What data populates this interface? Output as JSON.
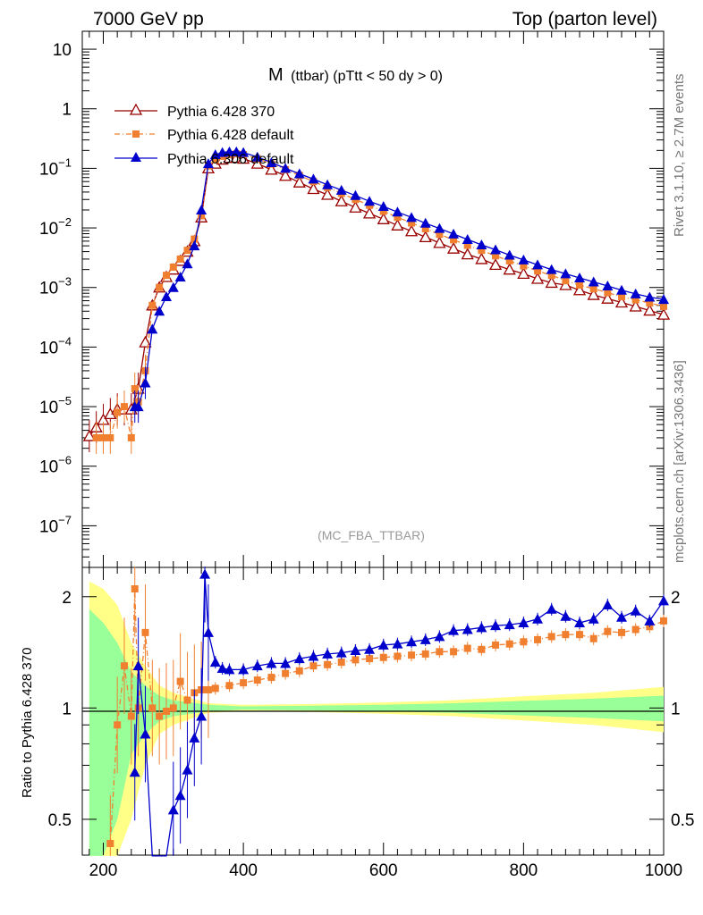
{
  "header": {
    "left": "7000 GeV pp",
    "right": "Top (parton level)"
  },
  "plot_title": {
    "main": "M",
    "sub": "(ttbar) (pTtt < 50 dy > 0)"
  },
  "watermark": "(MC_FBA_TTBAR)",
  "side_labels": {
    "rivet": "Rivet 3.1.10, ≥ 2.7M events",
    "mcplots": "mcplots.cern.ch [arXiv:1306.3436]"
  },
  "ratio_ylabel": "Ratio to Pythia 6.428 370",
  "legend": [
    {
      "label": "Pythia 6.428 370",
      "color": "#990000",
      "marker": "open-triangle",
      "line": "solid"
    },
    {
      "label": "Pythia 6.428 default",
      "color": "#f08030",
      "marker": "square",
      "line": "dashdot"
    },
    {
      "label": "Pythia 6.306 default",
      "color": "#0000cc",
      "marker": "filled-triangle",
      "line": "solid"
    }
  ],
  "colors": {
    "ref": "#990000",
    "default428": "#f08030",
    "default306": "#0000cc",
    "band_inner": "#99ff99",
    "band_outer": "#ffff88"
  },
  "chart_data": [
    {
      "type": "line",
      "panel": "main",
      "xlim": [
        170,
        1000
      ],
      "yscale": "log",
      "ylim": [
        2e-08,
        20
      ],
      "xticks": [
        200,
        400,
        600,
        800,
        1000
      ],
      "yticks": [
        {
          "value": 1e-07,
          "base": "10",
          "exp": "−7"
        },
        {
          "value": 1e-06,
          "base": "10",
          "exp": "−6"
        },
        {
          "value": 1e-05,
          "base": "10",
          "exp": "−5"
        },
        {
          "value": 0.0001,
          "base": "10",
          "exp": "−4"
        },
        {
          "value": 0.001,
          "base": "10",
          "exp": "−3"
        },
        {
          "value": 0.01,
          "base": "10",
          "exp": "−2"
        },
        {
          "value": 0.1,
          "base": "10",
          "exp": "−1"
        },
        {
          "value": 1,
          "base": "1",
          "exp": ""
        },
        {
          "value": 10,
          "base": "10",
          "exp": ""
        }
      ],
      "series": [
        {
          "name": "Pythia 6.428 370",
          "x": [
            180,
            190,
            200,
            210,
            220,
            230,
            240,
            250,
            260,
            270,
            280,
            290,
            300,
            310,
            320,
            330,
            340,
            350,
            360,
            370,
            380,
            390,
            400,
            420,
            440,
            460,
            480,
            500,
            520,
            540,
            560,
            580,
            600,
            620,
            640,
            660,
            680,
            700,
            720,
            740,
            760,
            780,
            800,
            820,
            840,
            860,
            880,
            900,
            920,
            940,
            960,
            980,
            1000
          ],
          "y": [
            3.2e-06,
            4.5e-06,
            6e-06,
            7.5e-06,
            9e-06,
            9e-06,
            9e-06,
            2e-05,
            0.00012,
            0.0005,
            0.001,
            0.0015,
            0.002,
            0.0028,
            0.004,
            0.006,
            0.015,
            0.1,
            0.12,
            0.14,
            0.15,
            0.15,
            0.145,
            0.12,
            0.095,
            0.075,
            0.058,
            0.045,
            0.036,
            0.028,
            0.022,
            0.0175,
            0.014,
            0.011,
            0.0088,
            0.007,
            0.0056,
            0.0045,
            0.0036,
            0.003,
            0.0024,
            0.002,
            0.0017,
            0.0014,
            0.0012,
            0.0011,
            0.0009,
            0.00075,
            0.00065,
            0.00056,
            0.00048,
            0.00041,
            0.00035
          ]
        },
        {
          "name": "Pythia 6.428 default",
          "x": [
            190,
            200,
            210,
            220,
            230,
            240,
            245,
            250,
            260,
            270,
            280,
            290,
            300,
            310,
            320,
            330,
            340,
            350,
            360,
            370,
            380,
            390,
            400,
            420,
            440,
            460,
            480,
            500,
            520,
            540,
            560,
            580,
            600,
            620,
            640,
            660,
            680,
            700,
            720,
            740,
            760,
            780,
            800,
            820,
            840,
            860,
            880,
            900,
            920,
            940,
            960,
            980,
            1000
          ],
          "y": [
            3e-06,
            3e-06,
            3e-06,
            8e-06,
            1e-05,
            3e-06,
            2e-05,
            1.2e-05,
            4e-05,
            0.0005,
            0.001,
            0.0016,
            0.0022,
            0.003,
            0.0042,
            0.0065,
            0.016,
            0.11,
            0.14,
            0.16,
            0.17,
            0.175,
            0.17,
            0.145,
            0.118,
            0.095,
            0.076,
            0.06,
            0.048,
            0.038,
            0.03,
            0.024,
            0.019,
            0.0151,
            0.0121,
            0.0097,
            0.0078,
            0.0063,
            0.0051,
            0.0042,
            0.0034,
            0.0028,
            0.0023,
            0.0019,
            0.0016,
            0.0013,
            0.0011,
            0.00095,
            0.00082,
            0.0007,
            0.00062,
            0.00055,
            0.00048
          ]
        },
        {
          "name": "Pythia 6.306 default",
          "x": [
            245,
            250,
            260,
            270,
            280,
            290,
            300,
            310,
            320,
            330,
            340,
            350,
            360,
            370,
            380,
            390,
            400,
            420,
            440,
            460,
            480,
            500,
            520,
            540,
            560,
            580,
            600,
            620,
            640,
            660,
            680,
            700,
            720,
            740,
            760,
            780,
            800,
            820,
            840,
            860,
            880,
            900,
            920,
            940,
            960,
            980,
            1000
          ],
          "y": [
            1e-05,
            1e-05,
            2.5e-05,
            0.0002,
            0.0004,
            0.0007,
            0.001,
            0.0015,
            0.0025,
            0.005,
            0.02,
            0.12,
            0.17,
            0.185,
            0.19,
            0.19,
            0.185,
            0.155,
            0.125,
            0.1,
            0.081,
            0.066,
            0.053,
            0.043,
            0.035,
            0.028,
            0.023,
            0.0185,
            0.015,
            0.012,
            0.0098,
            0.0079,
            0.0064,
            0.0052,
            0.0043,
            0.0035,
            0.0029,
            0.0024,
            0.002,
            0.0017,
            0.00145,
            0.00124,
            0.00106,
            0.0009,
            0.00078,
            0.00069,
            0.00063
          ]
        }
      ]
    },
    {
      "type": "line",
      "panel": "ratio",
      "ylabel": "Ratio to Pythia 6.428 370",
      "xlim": [
        170,
        1000
      ],
      "yscale": "log",
      "ylim": [
        0.4,
        2.4
      ],
      "xticks": [
        200,
        400,
        600,
        800,
        1000
      ],
      "yticks": [
        0.5,
        1,
        2
      ],
      "reference_line": 1,
      "band": {
        "x": [
          180,
          200,
          220,
          240,
          260,
          280,
          300,
          350,
          400,
          500,
          600,
          700,
          800,
          900,
          1000
        ],
        "inner": [
          0.85,
          0.7,
          0.5,
          0.25,
          0.15,
          0.08,
          0.05,
          0.02,
          0.01,
          0.015,
          0.02,
          0.03,
          0.045,
          0.06,
          0.08
        ],
        "outer": [
          1.2,
          1.1,
          0.9,
          0.5,
          0.3,
          0.15,
          0.1,
          0.03,
          0.02,
          0.025,
          0.035,
          0.05,
          0.075,
          0.1,
          0.14
        ]
      },
      "series": [
        {
          "name": "Pythia 6.428 default",
          "x": [
            210,
            220,
            230,
            240,
            245,
            250,
            260,
            270,
            280,
            290,
            300,
            310,
            320,
            330,
            340,
            350,
            360,
            380,
            400,
            420,
            440,
            460,
            480,
            500,
            520,
            540,
            560,
            580,
            600,
            620,
            640,
            660,
            680,
            700,
            720,
            740,
            760,
            780,
            800,
            820,
            840,
            860,
            880,
            900,
            920,
            940,
            960,
            980,
            1000
          ],
          "y": [
            0.43,
            0.9,
            1.3,
            0.95,
            2.1,
            1.0,
            1.6,
            1.0,
            0.95,
            0.98,
            1.0,
            1.18,
            1.05,
            1.1,
            1.12,
            1.12,
            1.13,
            1.15,
            1.17,
            1.19,
            1.21,
            1.24,
            1.26,
            1.3,
            1.31,
            1.33,
            1.35,
            1.36,
            1.37,
            1.38,
            1.39,
            1.4,
            1.42,
            1.42,
            1.45,
            1.44,
            1.48,
            1.49,
            1.51,
            1.53,
            1.56,
            1.58,
            1.58,
            1.54,
            1.61,
            1.6,
            1.63,
            1.66,
            1.72
          ]
        },
        {
          "name": "Pythia 6.306 default",
          "x": [
            245,
            250,
            260,
            270,
            290,
            300,
            310,
            320,
            330,
            340,
            345,
            350,
            360,
            370,
            380,
            400,
            420,
            440,
            460,
            480,
            500,
            520,
            540,
            560,
            580,
            600,
            620,
            640,
            660,
            680,
            700,
            720,
            740,
            760,
            780,
            800,
            820,
            840,
            860,
            880,
            900,
            920,
            940,
            960,
            980,
            1000
          ],
          "y": [
            0.67,
            1.3,
            0.85,
            0.35,
            0.38,
            0.53,
            0.58,
            0.68,
            0.83,
            0.95,
            2.3,
            1.6,
            1.33,
            1.28,
            1.27,
            1.27,
            1.3,
            1.32,
            1.32,
            1.36,
            1.38,
            1.4,
            1.41,
            1.43,
            1.44,
            1.48,
            1.49,
            1.51,
            1.53,
            1.56,
            1.62,
            1.63,
            1.65,
            1.67,
            1.68,
            1.7,
            1.74,
            1.85,
            1.77,
            1.7,
            1.74,
            1.9,
            1.76,
            1.83,
            1.72,
            1.95
          ]
        }
      ]
    }
  ]
}
